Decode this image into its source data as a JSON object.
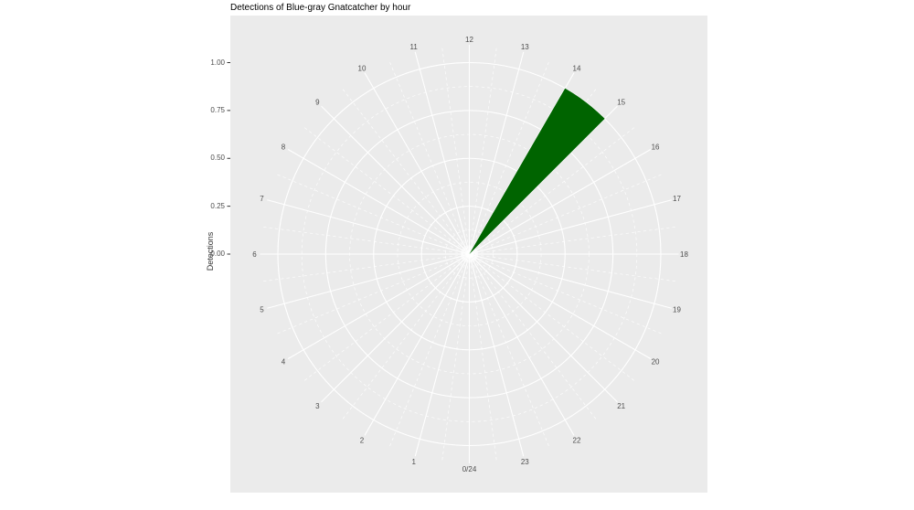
{
  "title": "Detections of Blue-gray Gnatcatcher by hour",
  "axes": {
    "r_title": "Detections",
    "r_tick_labels": [
      "0.00",
      "0.25",
      "0.50",
      "0.75",
      "1.00"
    ],
    "r_ticks": [
      0,
      0.25,
      0.5,
      0.75,
      1.0
    ]
  },
  "chart_data": {
    "type": "bar",
    "coordinate": "polar",
    "title": "Detections of Blue-gray Gnatcatcher by hour",
    "ylabel": "Detections",
    "categories": [
      "0/24",
      "1",
      "2",
      "3",
      "4",
      "5",
      "6",
      "7",
      "8",
      "9",
      "10",
      "11",
      "12",
      "13",
      "14",
      "15",
      "16",
      "17",
      "18",
      "19",
      "20",
      "21",
      "22",
      "23"
    ],
    "values": [
      0,
      0,
      0,
      0,
      0,
      0,
      0,
      0,
      0,
      0,
      0,
      0,
      0,
      0,
      1,
      0,
      0,
      0,
      0,
      0,
      0,
      0,
      0,
      0
    ],
    "rlim": [
      0,
      1.0
    ],
    "r_major_ticks": [
      0.25,
      0.5,
      0.75,
      1.0
    ],
    "r_minor_ticks": [
      0.125,
      0.375,
      0.625,
      0.875
    ],
    "layout_notes": "clock orientation: 0/24 at bottom, 12 at top, hours increase clockwise; single wedge spans from hour line 14 to hour line 15 reaching value 1.00",
    "legend": "none",
    "grid": "white solid major gridlines, white dashed minor gridlines on gray panel"
  },
  "colors": {
    "panel_bg": "#EBEBEB",
    "figure_bg": "#FFFFFF",
    "grid": "#FFFFFF",
    "bar": "#006400",
    "axis_text": "#4D4D4D",
    "axis_title_text": "#333333",
    "title_text": "#000000",
    "tick_mark": "#333333"
  }
}
